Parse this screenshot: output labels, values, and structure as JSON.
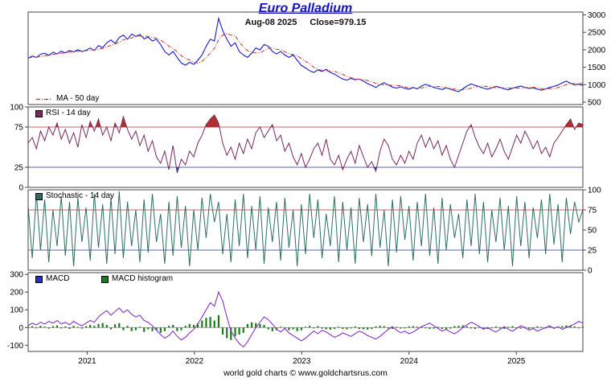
{
  "title": "Euro Palladium",
  "subtitle": {
    "date": "Aug-08 2025",
    "close": "Close=979.15"
  },
  "footer": "world gold charts © www.goldchartsrus.com",
  "legends": {
    "ma": "MA - 50 day",
    "rsi": "RSI - 14 day",
    "stochastic": "Stochastic - 14 day",
    "macd": "MACD",
    "macd_histogram": "MACD histogram"
  },
  "colors": {
    "title_blue": "#1313c8",
    "price_line": "#1a1acd",
    "ma_line": "#cc3322",
    "rsi_line": "#772a5e",
    "stochastic_line": "#2d6e62",
    "macd_line": "#8833cc",
    "macd_swatch": "#2233bb",
    "histogram": "#1e7a1e",
    "overbought_line": "#b03030",
    "oversold_line": "#2233aa"
  },
  "chart_data": {
    "type": "line",
    "title": "Euro Palladium",
    "date_label": "Aug-08 2025",
    "close_value": 979.15,
    "x_range": [
      2020.45,
      2025.62
    ],
    "x_ticks": [
      2021,
      2022,
      2023,
      2024,
      2025
    ],
    "panels": [
      {
        "id": "price",
        "ylim": [
          430,
          3080
        ],
        "y_ticks": [
          3000,
          2500,
          2000,
          1500,
          1000,
          500
        ],
        "axis_side": "right",
        "series": [
          {
            "name": "Euro Palladium close",
            "color": "#1a1acd",
            "width": 1.1,
            "values": [
              1760,
              1820,
              1780,
              1870,
              1900,
              1840,
              1930,
              1880,
              1960,
              1910,
              1980,
              1940,
              2000,
              1950,
              1985,
              2050,
              1980,
              2120,
              2060,
              2200,
              2280,
              2180,
              2350,
              2420,
              2300,
              2450,
              2380,
              2440,
              2310,
              2360,
              2250,
              2300,
              2150,
              1950,
              1850,
              1950,
              1780,
              1620,
              1560,
              1640,
              1580,
              1700,
              1850,
              2100,
              2300,
              2250,
              2900,
              2550,
              2300,
              2100,
              2200,
              1950,
              1850,
              1780,
              1900,
              2050,
              2000,
              2150,
              2100,
              1950,
              1880,
              1950,
              1850,
              1780,
              1850,
              1700,
              1550,
              1480,
              1400,
              1350,
              1420,
              1380,
              1440,
              1350,
              1300,
              1230,
              1160,
              1130,
              1180,
              1140,
              1160,
              1100,
              1030,
              980,
              920,
              1000,
              1060,
              990,
              930,
              900,
              940,
              890,
              870,
              920,
              880,
              960,
              1010,
              970,
              920,
              890,
              860,
              910,
              870,
              830,
              800,
              880,
              960,
              1020,
              980,
              940,
              900,
              870,
              910,
              950,
              920,
              880,
              850,
              900,
              930,
              960,
              920,
              890,
              910,
              870,
              840,
              880,
              920,
              950,
              990,
              1050,
              1100,
              1040,
              990,
              1010,
              979
            ]
          },
          {
            "name": "MA - 50 day",
            "color": "#cc3322",
            "width": 1,
            "dash": "5 2 1 2",
            "ma_window": 5
          }
        ]
      },
      {
        "id": "rsi",
        "ylim": [
          0,
          100
        ],
        "y_ticks": [
          100,
          75,
          25,
          0
        ],
        "axis_side": "left",
        "hlines": [
          {
            "y": 75,
            "color": "#b03030"
          },
          {
            "y": 25,
            "color": "#2233aa"
          }
        ],
        "fill_above": {
          "y": 75,
          "color": "#b03030"
        },
        "fill_below": {
          "y": 25,
          "color": "#2233aa"
        },
        "series": [
          {
            "name": "RSI - 14 day",
            "color": "#772a5e",
            "width": 1,
            "values": [
              55,
              62,
              48,
              70,
              58,
              75,
              65,
              80,
              60,
              72,
              55,
              68,
              50,
              78,
              62,
              82,
              70,
              85,
              65,
              75,
              58,
              80,
              68,
              88,
              72,
              60,
              70,
              52,
              65,
              45,
              58,
              38,
              30,
              45,
              22,
              52,
              18,
              35,
              28,
              45,
              38,
              55,
              65,
              78,
              85,
              90,
              80,
              55,
              40,
              50,
              35,
              55,
              42,
              60,
              48,
              68,
              75,
              62,
              70,
              78,
              58,
              65,
              45,
              55,
              38,
              28,
              42,
              25,
              35,
              48,
              55,
              40,
              60,
              35,
              28,
              40,
              22,
              35,
              45,
              30,
              52,
              38,
              25,
              32,
              20,
              45,
              60,
              52,
              35,
              28,
              40,
              30,
              45,
              35,
              55,
              65,
              50,
              62,
              48,
              58,
              40,
              52,
              35,
              25,
              40,
              55,
              70,
              78,
              62,
              50,
              42,
              55,
              38,
              48,
              60,
              45,
              35,
              50,
              65,
              55,
              70,
              60,
              48,
              58,
              42,
              50,
              38,
              55,
              62,
              70,
              78,
              85,
              72,
              80,
              78
            ]
          }
        ]
      },
      {
        "id": "stochastic",
        "ylim": [
          0,
          100
        ],
        "y_ticks": [
          100,
          75,
          50,
          25,
          0
        ],
        "axis_side": "right",
        "hlines": [
          {
            "y": 75,
            "color": "#b03030"
          },
          {
            "y": 25,
            "color": "#2233aa"
          }
        ],
        "series": [
          {
            "name": "Stochastic - 14 day",
            "color": "#2d6e62",
            "width": 1,
            "values": [
              80,
              15,
              95,
              25,
              88,
              10,
              75,
              30,
              92,
              18,
              85,
              5,
              90,
              35,
              78,
              12,
              95,
              28,
              82,
              8,
              90,
              20,
              98,
              15,
              85,
              30,
              75,
              10,
              88,
              22,
              95,
              35,
              70,
              8,
              85,
              18,
              92,
              28,
              80,
              5,
              75,
              25,
              90,
              40,
              95,
              60,
              85,
              20,
              70,
              10,
              88,
              30,
              95,
              15,
              80,
              25,
              92,
              8,
              78,
              35,
              85,
              12,
              90,
              28,
              75,
              5,
              82,
              20,
              95,
              40,
              88,
              15,
              70,
              30,
              92,
              10,
              85,
              25,
              78,
              8,
              90,
              35,
              82,
              18,
              95,
              28,
              75,
              5,
              88,
              22,
              92,
              38,
              80,
              12,
              85,
              30,
              95,
              18,
              78,
              8,
              90,
              25,
              82,
              40,
              70,
              15,
              88,
              30,
              95,
              20,
              85,
              10,
              75,
              35,
              90,
              25,
              80,
              5,
              92,
              30,
              85,
              15,
              78,
              40,
              88,
              20,
              95,
              32,
              82,
              10,
              90,
              45,
              85,
              60,
              75
            ]
          }
        ]
      },
      {
        "id": "macd",
        "ylim": [
          -135,
          310
        ],
        "y_ticks": [
          300,
          200,
          100,
          0,
          -100
        ],
        "axis_side": "left",
        "hlines": [
          {
            "y": 0,
            "color": "#999999"
          }
        ],
        "histogram": {
          "name": "MACD histogram",
          "color": "#1e7a1e",
          "values": [
            3,
            8,
            -4,
            10,
            5,
            -6,
            8,
            12,
            -5,
            6,
            -8,
            10,
            4,
            -6,
            8,
            15,
            10,
            20,
            25,
            15,
            -10,
            18,
            25,
            -15,
            10,
            -20,
            -15,
            5,
            -25,
            -10,
            -20,
            -15,
            -30,
            -20,
            10,
            15,
            -20,
            -15,
            10,
            20,
            15,
            25,
            40,
            55,
            60,
            40,
            70,
            -40,
            -60,
            -70,
            -50,
            -40,
            -30,
            20,
            30,
            25,
            20,
            15,
            -10,
            -20,
            -15,
            5,
            -10,
            -15,
            -10,
            -20,
            -15,
            5,
            10,
            -5,
            8,
            -6,
            -10,
            -12,
            -8,
            5,
            -8,
            -10,
            -5,
            6,
            -8,
            -10,
            -12,
            -8,
            6,
            10,
            8,
            -5,
            -8,
            4,
            -6,
            -5,
            6,
            8,
            5,
            6,
            -4,
            -8,
            -6,
            4,
            -8,
            -10,
            -6,
            8,
            10,
            12,
            6,
            -5,
            -8,
            4,
            -6,
            -8,
            -4,
            6,
            -5,
            -8,
            4,
            8,
            -4,
            -6,
            -5,
            -8,
            -4,
            6,
            4,
            -5,
            5,
            -6,
            4,
            8,
            12,
            10,
            6,
            -4,
            5
          ]
        },
        "series": [
          {
            "name": "MACD",
            "color": "#8833cc",
            "width": 1.1,
            "values": [
              10,
              25,
              15,
              30,
              20,
              35,
              25,
              40,
              20,
              30,
              15,
              35,
              20,
              10,
              25,
              40,
              30,
              60,
              80,
              95,
              70,
              90,
              110,
              85,
              100,
              75,
              60,
              70,
              40,
              30,
              10,
              -15,
              -40,
              -60,
              -45,
              -20,
              -50,
              -70,
              -55,
              -30,
              -10,
              20,
              60,
              100,
              140,
              120,
              200,
              150,
              60,
              -20,
              -60,
              -90,
              -110,
              -80,
              -40,
              0,
              30,
              60,
              45,
              20,
              -10,
              -25,
              -5,
              -30,
              -45,
              -60,
              -75,
              -60,
              -40,
              -20,
              -35,
              -15,
              -25,
              -40,
              -55,
              -45,
              -30,
              -40,
              -50,
              -35,
              -20,
              -30,
              -45,
              -55,
              -65,
              -50,
              -30,
              -10,
              5,
              -15,
              -30,
              -20,
              -35,
              -25,
              -10,
              5,
              15,
              25,
              10,
              -5,
              -20,
              -10,
              -25,
              -35,
              -20,
              0,
              15,
              30,
              20,
              5,
              -10,
              0,
              -15,
              -25,
              -10,
              5,
              -10,
              -20,
              -5,
              10,
              0,
              -15,
              -5,
              -20,
              -10,
              0,
              10,
              -5,
              5,
              -10,
              0,
              10,
              20,
              35,
              25
            ]
          }
        ]
      }
    ]
  }
}
